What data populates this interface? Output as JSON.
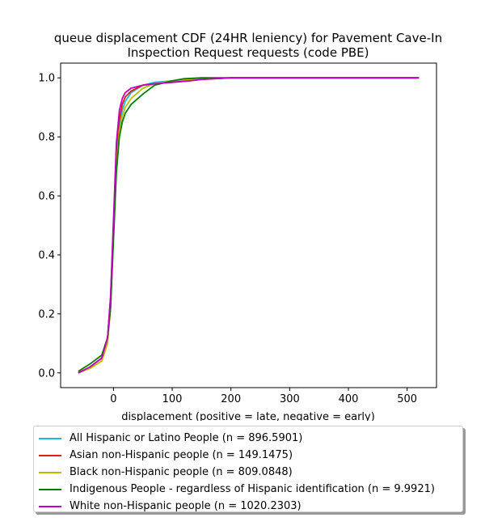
{
  "chart_data": {
    "type": "line",
    "title": "queue displacement CDF (24HR leniency) for Pavement Cave-In Inspection Request  requests (code PBE)",
    "title_lines": [
      "queue displacement CDF (24HR leniency) for Pavement Cave-In",
      "Inspection Request  requests (code PBE)"
    ],
    "xlabel": "displacement (positive = late, negative = early)",
    "ylabel": "",
    "xlim": [
      -90,
      550
    ],
    "ylim": [
      -0.05,
      1.05
    ],
    "xticks": [
      0,
      100,
      200,
      300,
      400,
      500
    ],
    "yticks": [
      0.0,
      0.2,
      0.4,
      0.6,
      0.8,
      1.0
    ],
    "legend_position": "below",
    "series": [
      {
        "name": "All Hispanic or Latino People (n = 896.5901)",
        "color": "#17becf",
        "x": [
          -60,
          -40,
          -20,
          -10,
          -5,
          0,
          5,
          10,
          15,
          20,
          30,
          50,
          70,
          100,
          150,
          200,
          520
        ],
        "y": [
          0.0,
          0.02,
          0.05,
          0.12,
          0.25,
          0.5,
          0.72,
          0.84,
          0.89,
          0.92,
          0.95,
          0.975,
          0.985,
          0.99,
          0.997,
          1.0,
          1.0
        ]
      },
      {
        "name": "Asian non-Hispanic people (n = 149.1475)",
        "color": "#e41a1c",
        "x": [
          -60,
          -40,
          -20,
          -10,
          -5,
          0,
          5,
          10,
          15,
          20,
          30,
          50,
          70,
          100,
          130,
          150,
          200,
          520
        ],
        "y": [
          0.0,
          0.02,
          0.05,
          0.12,
          0.25,
          0.5,
          0.75,
          0.86,
          0.91,
          0.935,
          0.955,
          0.975,
          0.98,
          0.985,
          0.99,
          0.995,
          1.0,
          1.0
        ]
      },
      {
        "name": "Black non-Hispanic people (n = 809.0848)",
        "color": "#bcbd00",
        "x": [
          -60,
          -40,
          -20,
          -10,
          -5,
          0,
          5,
          10,
          15,
          20,
          30,
          50,
          70,
          100,
          150,
          200,
          520
        ],
        "y": [
          0.0,
          0.015,
          0.04,
          0.1,
          0.22,
          0.48,
          0.7,
          0.82,
          0.87,
          0.9,
          0.93,
          0.965,
          0.98,
          0.99,
          0.997,
          1.0,
          1.0
        ]
      },
      {
        "name": "Indigenous People - regardless of Hispanic identification (n = 9.9921)",
        "color": "#008000",
        "x": [
          -60,
          -40,
          -20,
          -10,
          -5,
          0,
          5,
          10,
          15,
          20,
          30,
          50,
          70,
          100,
          120,
          150,
          200,
          520
        ],
        "y": [
          0.005,
          0.03,
          0.06,
          0.12,
          0.22,
          0.45,
          0.68,
          0.8,
          0.85,
          0.88,
          0.91,
          0.945,
          0.975,
          0.99,
          0.997,
          1.0,
          1.0,
          1.0
        ]
      },
      {
        "name": "White non-Hispanic people (n = 1020.2303)",
        "color": "#c000c0",
        "x": [
          -60,
          -40,
          -20,
          -10,
          -5,
          0,
          5,
          10,
          15,
          20,
          30,
          50,
          70,
          100,
          130,
          150,
          200,
          520
        ],
        "y": [
          0.0,
          0.02,
          0.05,
          0.12,
          0.26,
          0.52,
          0.78,
          0.89,
          0.93,
          0.95,
          0.965,
          0.975,
          0.98,
          0.985,
          0.99,
          0.995,
          1.0,
          1.0
        ]
      }
    ]
  }
}
